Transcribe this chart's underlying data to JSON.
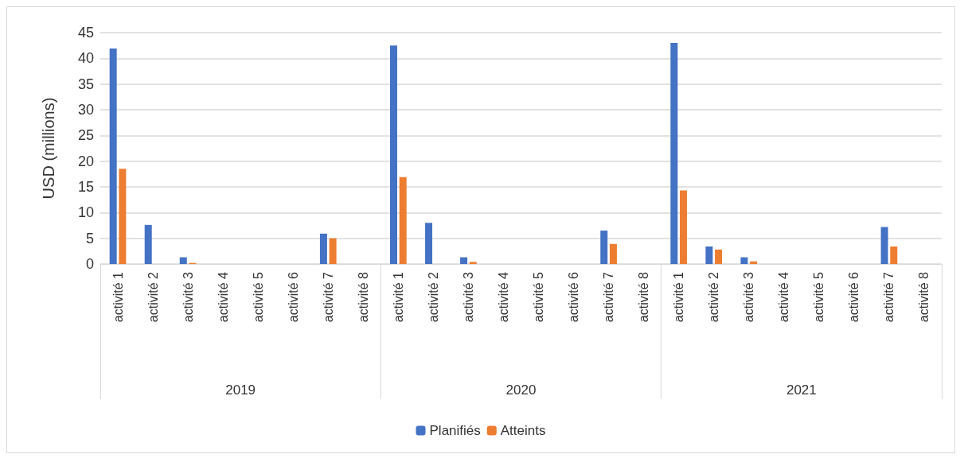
{
  "chart_data": {
    "type": "bar",
    "ylabel": "USD (millions)",
    "categories": [
      "activité 1",
      "activité 2",
      "activité 3",
      "activité 4",
      "activité 5",
      "activité 6",
      "activité 7",
      "activité 8",
      "activité 1",
      "activité 2",
      "activité 3",
      "activité 4",
      "activité 5",
      "activité 6",
      "activité 7",
      "activité 8",
      "activité 1",
      "activité 2",
      "activité 3",
      "activité 4",
      "activité 5",
      "activité 6",
      "activité 7",
      "activité 8"
    ],
    "annotations": [
      "2019",
      "2020",
      "2021"
    ],
    "series": [
      {
        "name": "Planifiés",
        "color": "#4472c4",
        "values": [
          41.9,
          7.6,
          1.3,
          0,
          0,
          0,
          5.9,
          0,
          42.5,
          8.0,
          1.3,
          0,
          0,
          0,
          6.5,
          0,
          43.0,
          3.4,
          1.3,
          0,
          0,
          0,
          7.2,
          0
        ]
      },
      {
        "name": "Atteints",
        "color": "#ed7d31",
        "values": [
          18.5,
          0,
          0.2,
          0,
          0,
          0,
          5.0,
          0,
          16.9,
          0,
          0.4,
          0,
          0,
          0,
          3.9,
          0,
          14.3,
          2.8,
          0.5,
          0,
          0,
          0,
          3.4,
          0
        ]
      }
    ],
    "ylim": [
      0,
      45
    ],
    "yticks": [
      0,
      5,
      10,
      15,
      20,
      25,
      30,
      35,
      40,
      45
    ],
    "grid": "y",
    "legend": "bottom"
  }
}
